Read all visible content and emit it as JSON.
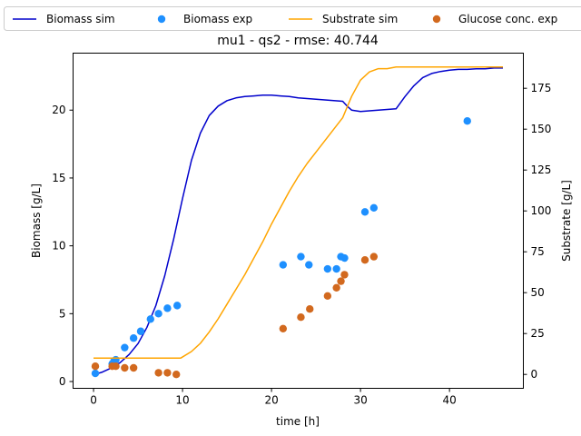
{
  "chart_data": {
    "type": "line",
    "title": "mu1 - qs2 - rmse: 40.744",
    "xlabel": "time [h]",
    "ylabel": "Biomass [g/L]",
    "y2label": "Substrate [g/L]",
    "xlim": [
      -2.3,
      48.3
    ],
    "ylim": [
      -0.5,
      24.2
    ],
    "y2lim": [
      -8.5,
      196.5
    ],
    "xticks": [
      0,
      10,
      20,
      30,
      40
    ],
    "yticks": [
      0,
      5,
      10,
      15,
      20
    ],
    "y2ticks": [
      0,
      25,
      50,
      75,
      100,
      125,
      150,
      175
    ],
    "grid": false,
    "legend": {
      "placement": "top",
      "entries": [
        {
          "label": "Biomass sim",
          "kind": "line",
          "color": "#0000cc"
        },
        {
          "label": "Biomass exp",
          "kind": "marker",
          "color": "#1e90ff"
        },
        {
          "label": "Substrate sim",
          "kind": "line",
          "color": "#ffa500"
        },
        {
          "label": "Glucose conc. exp",
          "kind": "marker",
          "color": "#d2691e"
        }
      ]
    },
    "series": [
      {
        "name": "Biomass sim",
        "type": "line",
        "axis": "left",
        "color": "#0000cc",
        "x": [
          0,
          1,
          2,
          3,
          4,
          5,
          6,
          7,
          8,
          9,
          10,
          11,
          12,
          13,
          14,
          15,
          16,
          17,
          18,
          19,
          20,
          21,
          22,
          23,
          24,
          25,
          26,
          27,
          28,
          28.5,
          29,
          30,
          31,
          32,
          33,
          34,
          35,
          36,
          37,
          38,
          39,
          40,
          41,
          42,
          43,
          44,
          45,
          46
        ],
        "y": [
          0.5,
          0.7,
          1.0,
          1.4,
          2.0,
          2.8,
          4.0,
          5.6,
          7.8,
          10.5,
          13.5,
          16.3,
          18.3,
          19.6,
          20.3,
          20.7,
          20.9,
          21.0,
          21.05,
          21.1,
          21.1,
          21.05,
          21.0,
          20.9,
          20.85,
          20.8,
          20.75,
          20.7,
          20.65,
          20.3,
          20.0,
          19.9,
          19.95,
          20.0,
          20.05,
          20.1,
          21.0,
          21.8,
          22.4,
          22.7,
          22.85,
          22.95,
          23.0,
          23.0,
          23.05,
          23.05,
          23.1,
          23.1
        ]
      },
      {
        "name": "Biomass exp",
        "type": "scatter",
        "axis": "left",
        "color": "#1e90ff",
        "x": [
          0.2,
          2.1,
          2.3,
          2.5,
          3.5,
          4.5,
          5.3,
          6.4,
          7.3,
          8.3,
          9.4,
          21.3,
          23.3,
          24.2,
          26.3,
          27.3,
          27.8,
          28.2,
          30.5,
          31.5,
          42.0
        ],
        "y": [
          0.6,
          1.3,
          1.5,
          1.6,
          2.5,
          3.2,
          3.7,
          4.6,
          5.0,
          5.4,
          5.6,
          8.6,
          9.2,
          8.6,
          8.3,
          8.3,
          9.2,
          9.1,
          12.5,
          12.8,
          19.2
        ]
      },
      {
        "name": "Substrate sim",
        "type": "line",
        "axis": "right",
        "color": "#ffa500",
        "x": [
          0,
          2,
          4,
          6,
          8,
          9.8,
          11,
          12,
          13,
          14,
          15,
          16,
          17,
          18,
          19,
          20,
          21,
          22,
          23,
          24,
          25,
          26,
          27,
          28,
          29,
          30,
          31,
          32,
          33,
          34,
          35,
          36,
          38,
          40,
          42,
          44,
          46
        ],
        "y": [
          10,
          10,
          10,
          10,
          10,
          10,
          14,
          19,
          26,
          34,
          43,
          52,
          61,
          71,
          81,
          92,
          102,
          112,
          121,
          129,
          136,
          143,
          150,
          157,
          170,
          180,
          185,
          187,
          187,
          188,
          188,
          188,
          188,
          188,
          188,
          188,
          188
        ]
      },
      {
        "name": "Glucose conc. exp",
        "type": "scatter",
        "axis": "right",
        "color": "#d2691e",
        "x": [
          0.2,
          2.1,
          2.5,
          3.5,
          4.5,
          7.3,
          8.3,
          9.3,
          21.3,
          23.3,
          24.3,
          26.3,
          27.3,
          27.8,
          28.2,
          30.5,
          31.5
        ],
        "y": [
          5,
          5,
          5,
          4,
          4,
          1,
          1,
          0,
          28,
          35,
          40,
          48,
          53,
          57,
          61,
          70,
          72
        ]
      }
    ]
  }
}
